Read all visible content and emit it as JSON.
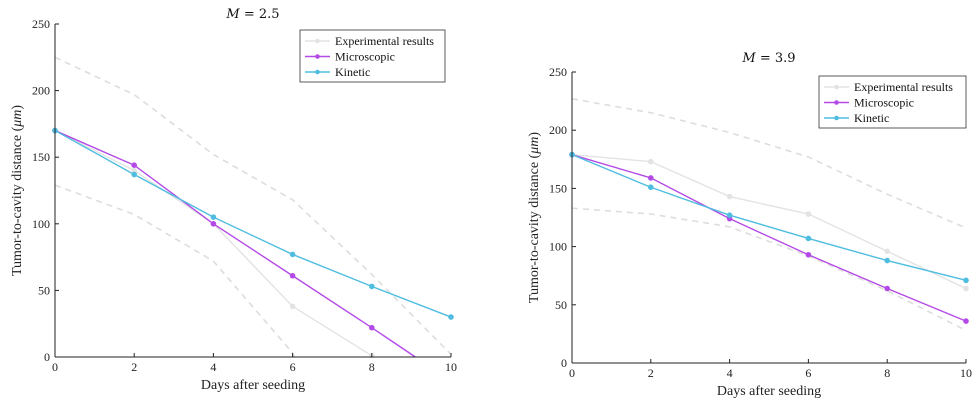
{
  "chart_data": [
    {
      "type": "line",
      "title": "M = 2.5",
      "title_var": "M",
      "title_value": "= 2.5",
      "xlabel": "Days after seeding",
      "ylabel": "Tumor-to-cavity distance (μm)",
      "ylabel_pre": "Tumor-to-cavity distance (",
      "ylabel_unit": "μm",
      "ylabel_post": ")",
      "xlim": [
        0,
        10
      ],
      "ylim": [
        0,
        250
      ],
      "xticks": [
        0,
        2,
        4,
        6,
        8,
        10
      ],
      "yticks": [
        0,
        50,
        100,
        150,
        200,
        250
      ],
      "legend_position": "top-right",
      "grid": false,
      "series": [
        {
          "name": "Experimental results",
          "color": "#e3e3e3",
          "marker": "dot",
          "x": [
            0,
            2,
            4,
            6,
            8
          ],
          "y": [
            170,
            140,
            100,
            38,
            1
          ]
        },
        {
          "name": "Microscopic",
          "color": "#b44ae6",
          "marker": "dot",
          "x": [
            0,
            2,
            4,
            6,
            8,
            9.1
          ],
          "y": [
            170,
            144,
            100,
            61,
            22,
            0
          ]
        },
        {
          "name": "Kinetic",
          "color": "#4fbde0",
          "marker": "dot",
          "x": [
            0,
            2,
            4,
            6,
            8,
            10
          ],
          "y": [
            170,
            137,
            105,
            77,
            53,
            30
          ]
        }
      ],
      "bounds": [
        {
          "color": "#dddddd",
          "x": [
            0,
            2,
            4,
            6,
            8,
            10
          ],
          "y": [
            225,
            197,
            152,
            118,
            62,
            2
          ]
        },
        {
          "color": "#dddddd",
          "x": [
            0,
            2,
            4,
            6,
            6.05
          ],
          "y": [
            129,
            107,
            72,
            3,
            0
          ]
        }
      ]
    },
    {
      "type": "line",
      "title": "M = 3.9",
      "title_var": "M",
      "title_value": "= 3.9",
      "xlabel": "Days after seeding",
      "ylabel": "Tumor-to-cavity distance (μm)",
      "ylabel_pre": "Tumor-to-cavity distance (",
      "ylabel_unit": "μm",
      "ylabel_post": ")",
      "xlim": [
        0,
        10
      ],
      "ylim": [
        0,
        250
      ],
      "xticks": [
        0,
        2,
        4,
        6,
        8,
        10
      ],
      "yticks": [
        0,
        50,
        100,
        150,
        200,
        250
      ],
      "legend_position": "top-right",
      "grid": false,
      "series": [
        {
          "name": "Experimental results",
          "color": "#e3e3e3",
          "marker": "dot",
          "x": [
            0,
            2,
            4,
            6,
            8,
            10
          ],
          "y": [
            179,
            173,
            143,
            128,
            96,
            64
          ]
        },
        {
          "name": "Microscopic",
          "color": "#b44ae6",
          "marker": "dot",
          "x": [
            0,
            2,
            4,
            6,
            8,
            10
          ],
          "y": [
            179,
            159,
            124,
            93,
            64,
            36
          ]
        },
        {
          "name": "Kinetic",
          "color": "#4fbde0",
          "marker": "dot",
          "x": [
            0,
            2,
            4,
            6,
            8,
            10
          ],
          "y": [
            179,
            151,
            127,
            107,
            88,
            71
          ]
        }
      ],
      "bounds": [
        {
          "color": "#dddddd",
          "x": [
            0,
            2,
            4,
            6,
            8,
            10
          ],
          "y": [
            227,
            215,
            198,
            177,
            145,
            116
          ]
        },
        {
          "color": "#dddddd",
          "x": [
            0,
            2,
            4,
            6,
            8,
            10
          ],
          "y": [
            133,
            128,
            117,
            92,
            62,
            28
          ]
        }
      ]
    }
  ]
}
